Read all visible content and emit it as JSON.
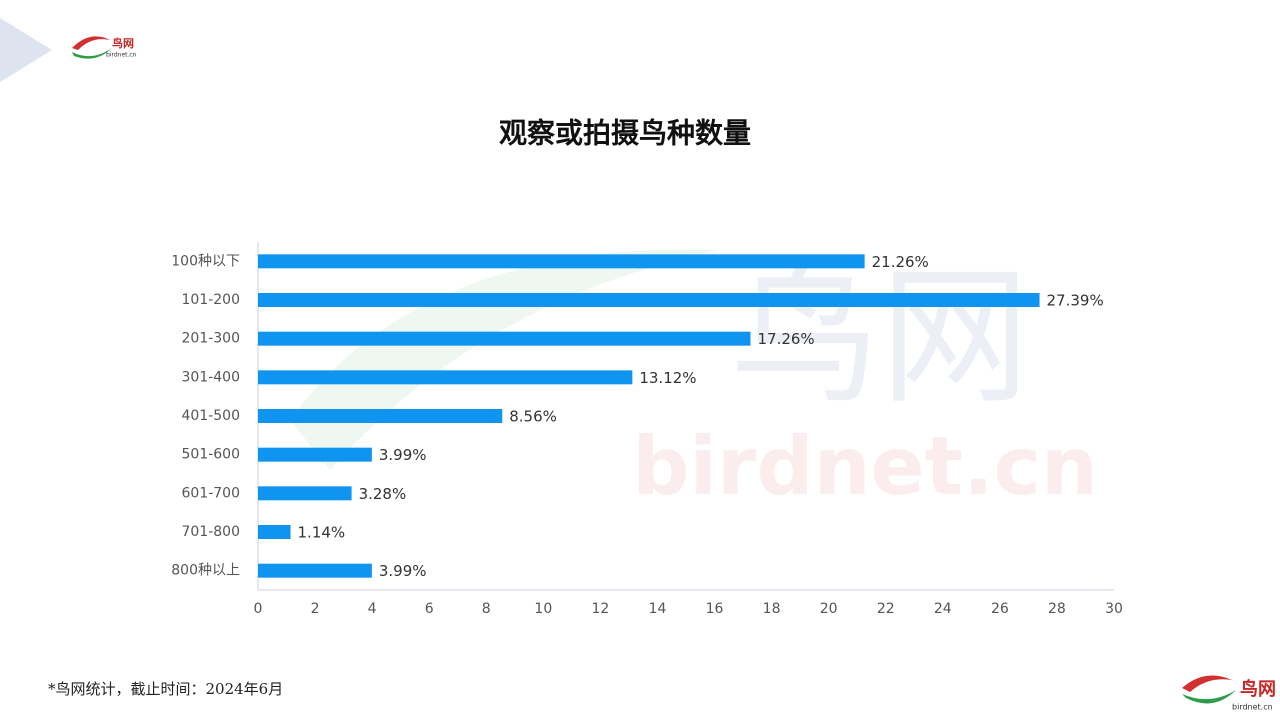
{
  "chart_data": {
    "type": "hbar",
    "title": "观察或拍摄鸟种数量",
    "categories": [
      "100种以下",
      "101-200",
      "201-300",
      "301-400",
      "401-500",
      "501-600",
      "601-700",
      "701-800",
      "800种以上"
    ],
    "values": [
      21.26,
      27.39,
      17.26,
      13.12,
      8.56,
      3.99,
      3.28,
      1.14,
      3.99
    ],
    "value_labels": [
      "21.26%",
      "27.39%",
      "17.26%",
      "13.12%",
      "8.56%",
      "3.99%",
      "3.28%",
      "1.14%",
      "3.99%"
    ],
    "color": "#0f95ef",
    "xlim": [
      0,
      30
    ],
    "xticks": [
      0,
      2,
      4,
      6,
      8,
      10,
      12,
      14,
      16,
      18,
      20,
      22,
      24,
      26,
      28,
      30
    ],
    "grid": false
  },
  "footnote": "*鸟网统计，截止时间：2024年6月",
  "logo": {
    "name": "鸟网",
    "domain": "birdnet.cn"
  }
}
